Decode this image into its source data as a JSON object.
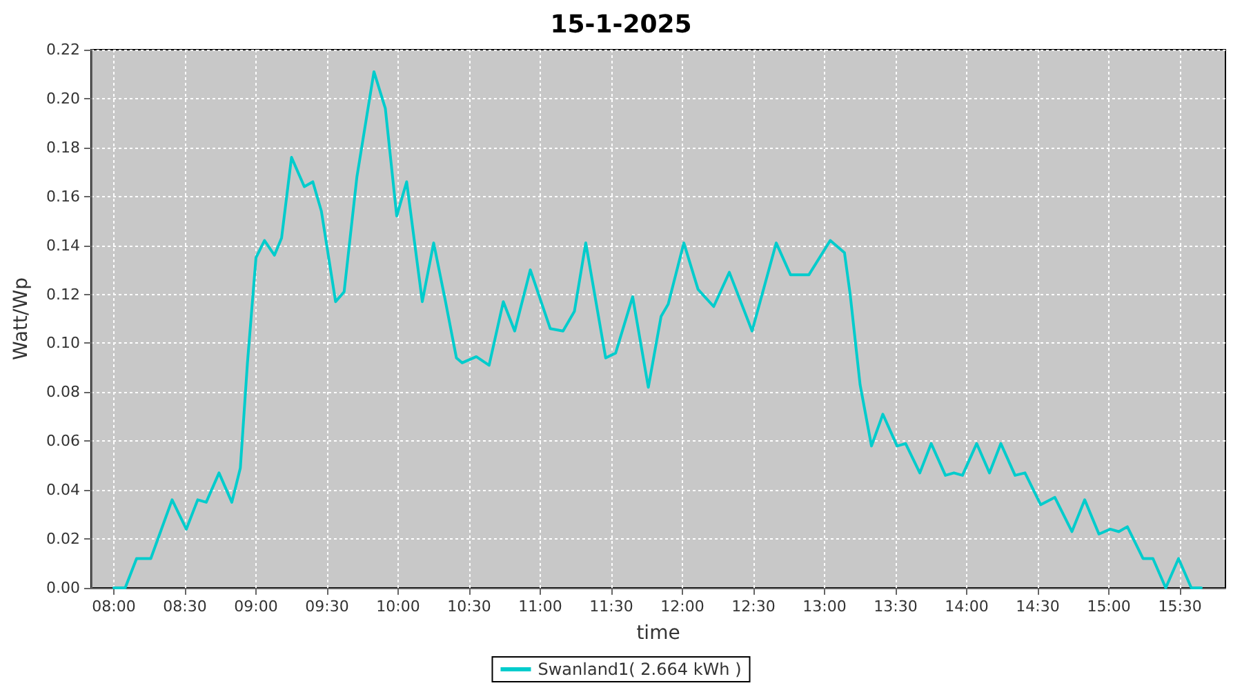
{
  "chart_data": {
    "type": "line",
    "title": "15-1-2025",
    "xlabel": "time",
    "ylabel": "Watt/Wp",
    "xlim": [
      7.84,
      15.82
    ],
    "xticks": [
      {
        "value": 8,
        "label": "08:00"
      },
      {
        "value": 8.5,
        "label": "08:30"
      },
      {
        "value": 9,
        "label": "09:00"
      },
      {
        "value": 9.5,
        "label": "09:30"
      },
      {
        "value": 10,
        "label": "10:00"
      },
      {
        "value": 10.5,
        "label": "10:30"
      },
      {
        "value": 11,
        "label": "11:00"
      },
      {
        "value": 11.5,
        "label": "11:30"
      },
      {
        "value": 12,
        "label": "12:00"
      },
      {
        "value": 12.5,
        "label": "12:30"
      },
      {
        "value": 13,
        "label": "13:00"
      },
      {
        "value": 13.5,
        "label": "13:30"
      },
      {
        "value": 14,
        "label": "14:00"
      },
      {
        "value": 14.5,
        "label": "14:30"
      },
      {
        "value": 15,
        "label": "15:00"
      },
      {
        "value": 15.5,
        "label": "15:30"
      }
    ],
    "ylim": [
      0,
      0.22
    ],
    "yticks": [
      {
        "value": 0,
        "label": "0.00"
      },
      {
        "value": 0.02,
        "label": "0.02"
      },
      {
        "value": 0.04,
        "label": "0.04"
      },
      {
        "value": 0.06,
        "label": "0.06"
      },
      {
        "value": 0.08,
        "label": "0.08"
      },
      {
        "value": 0.1,
        "label": "0.10"
      },
      {
        "value": 0.12,
        "label": "0.12"
      },
      {
        "value": 0.14,
        "label": "0.14"
      },
      {
        "value": 0.16,
        "label": "0.16"
      },
      {
        "value": 0.18,
        "label": "0.18"
      },
      {
        "value": 0.2,
        "label": "0.20"
      },
      {
        "value": 0.22,
        "label": "0.22"
      }
    ],
    "grid": true,
    "legend": "bottom",
    "marker": "none",
    "line_style": "solid",
    "series": [
      {
        "name": "Swanland1( 2.664 kWh )",
        "color": "#00cccc",
        "x": [
          8.0,
          8.08,
          8.16,
          8.26,
          8.41,
          8.51,
          8.59,
          8.65,
          8.74,
          8.83,
          8.89,
          8.94,
          9.0,
          9.06,
          9.13,
          9.18,
          9.25,
          9.34,
          9.4,
          9.46,
          9.56,
          9.62,
          9.71,
          9.83,
          9.91,
          9.99,
          10.06,
          10.17,
          10.25,
          10.33,
          10.41,
          10.45,
          10.55,
          10.64,
          10.74,
          10.82,
          10.93,
          11.07,
          11.16,
          11.24,
          11.32,
          11.46,
          11.53,
          11.65,
          11.76,
          11.85,
          11.9,
          12.01,
          12.11,
          12.22,
          12.33,
          12.49,
          12.66,
          12.76,
          12.89,
          13.04,
          13.14,
          13.18,
          13.25,
          13.33,
          13.41,
          13.51,
          13.57,
          13.67,
          13.75,
          13.85,
          13.91,
          13.97,
          14.07,
          14.16,
          14.24,
          14.34,
          14.41,
          14.52,
          14.62,
          14.74,
          14.83,
          14.93,
          15.01,
          15.07,
          15.13,
          15.24,
          15.31,
          15.4,
          15.49,
          15.58,
          15.65
        ],
        "values": [
          0,
          0,
          0.012,
          0.012,
          0.036,
          0.024,
          0.036,
          0.035,
          0.047,
          0.035,
          0.049,
          0.092,
          0.135,
          0.142,
          0.136,
          0.143,
          0.176,
          0.164,
          0.166,
          0.154,
          0.117,
          0.121,
          0.168,
          0.211,
          0.196,
          0.152,
          0.166,
          0.117,
          0.141,
          0.118,
          0.094,
          0.092,
          0.0945,
          0.091,
          0.117,
          0.105,
          0.13,
          0.106,
          0.105,
          0.113,
          0.141,
          0.094,
          0.096,
          0.119,
          0.082,
          0.111,
          0.116,
          0.141,
          0.122,
          0.115,
          0.129,
          0.105,
          0.141,
          0.128,
          0.128,
          0.142,
          0.137,
          0.12,
          0.083,
          0.058,
          0.071,
          0.058,
          0.059,
          0.047,
          0.059,
          0.046,
          0.047,
          0.046,
          0.059,
          0.047,
          0.059,
          0.046,
          0.047,
          0.034,
          0.037,
          0.023,
          0.036,
          0.022,
          0.024,
          0.023,
          0.025,
          0.012,
          0.012,
          0,
          0.012,
          0,
          0
        ]
      }
    ]
  }
}
